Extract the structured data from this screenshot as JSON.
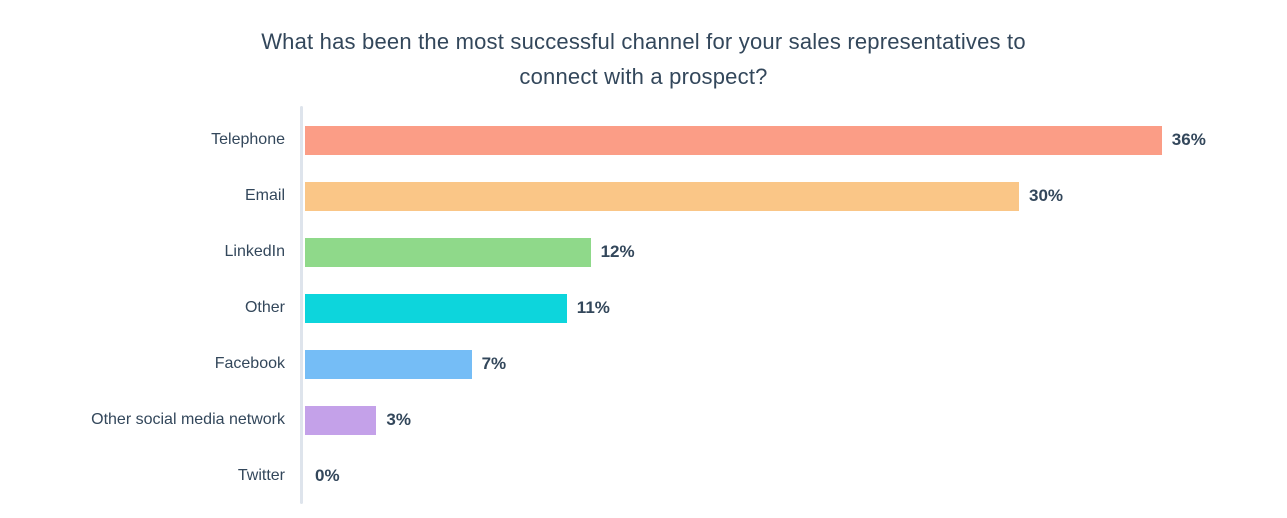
{
  "page": {
    "background": "#ffffff",
    "text_color": "#33475b",
    "axis_color": "#dee4ec"
  },
  "title_lines": [
    "What has been the most successful channel for your sales representatives to",
    "connect with a prospect?"
  ],
  "chart_data": {
    "type": "bar",
    "orientation": "horizontal",
    "title": "What has been the most successful channel for your sales representatives to connect with a prospect?",
    "categories": [
      "Telephone",
      "Email",
      "LinkedIn",
      "Other",
      "Facebook",
      "Other social media network",
      "Twitter"
    ],
    "values": [
      36,
      30,
      12,
      11,
      7,
      3,
      0
    ],
    "value_labels": [
      "36%",
      "30%",
      "12%",
      "11%",
      "7%",
      "3%",
      "0%"
    ],
    "unit": "%",
    "bar_colors": [
      "#fb9d86",
      "#fac687",
      "#8fd98a",
      "#0dd5dc",
      "#75bdf6",
      "#c4a1e9",
      "#ffffff"
    ],
    "xlim": [
      0,
      38
    ],
    "xlabel": "",
    "ylabel": "",
    "grid": false,
    "legend": false,
    "value_label_position": "right-of-bar"
  }
}
